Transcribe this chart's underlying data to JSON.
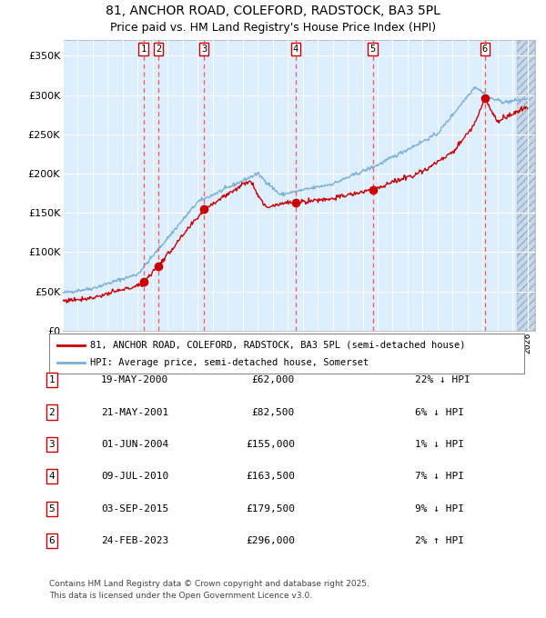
{
  "title": "81, ANCHOR ROAD, COLEFORD, RADSTOCK, BA3 5PL",
  "subtitle": "Price paid vs. HM Land Registry's House Price Index (HPI)",
  "transactions": [
    {
      "num": 1,
      "date": "19-MAY-2000",
      "year": 2000.38,
      "price": 62000,
      "pct": "22%",
      "dir": "↓"
    },
    {
      "num": 2,
      "date": "21-MAY-2001",
      "year": 2001.38,
      "price": 82500,
      "pct": "6%",
      "dir": "↓"
    },
    {
      "num": 3,
      "date": "01-JUN-2004",
      "year": 2004.42,
      "price": 155000,
      "pct": "1%",
      "dir": "↓"
    },
    {
      "num": 4,
      "date": "09-JUL-2010",
      "year": 2010.52,
      "price": 163500,
      "pct": "7%",
      "dir": "↓"
    },
    {
      "num": 5,
      "date": "03-SEP-2015",
      "year": 2015.67,
      "price": 179500,
      "pct": "9%",
      "dir": "↓"
    },
    {
      "num": 6,
      "date": "24-FEB-2023",
      "year": 2023.15,
      "price": 296000,
      "pct": "2%",
      "dir": "↑"
    }
  ],
  "legend_line1": "81, ANCHOR ROAD, COLEFORD, RADSTOCK, BA3 5PL (semi-detached house)",
  "legend_line2": "HPI: Average price, semi-detached house, Somerset",
  "footer1": "Contains HM Land Registry data © Crown copyright and database right 2025.",
  "footer2": "This data is licensed under the Open Government Licence v3.0.",
  "price_line_color": "#cc0000",
  "hpi_line_color": "#7ab0d4",
  "bg_color": "#ddeeff",
  "hatch_bg_color": "#c8d8e8",
  "grid_color": "#ffffff",
  "vline_color": "#ff5555",
  "ylim": [
    0,
    370000
  ],
  "xlim_start": 1995,
  "xlim_end": 2026.5,
  "title_fontsize": 10,
  "subtitle_fontsize": 9
}
